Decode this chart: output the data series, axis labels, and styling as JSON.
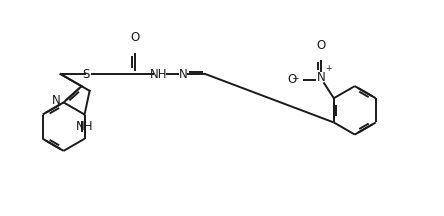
{
  "bg_color": "#ffffff",
  "line_color": "#1a1a1a",
  "line_width": 1.4,
  "font_size": 8.5,
  "figsize": [
    4.44,
    2.16
  ],
  "dpi": 100,
  "xlim": [
    0,
    9.5
  ],
  "ylim": [
    0,
    4.5
  ]
}
